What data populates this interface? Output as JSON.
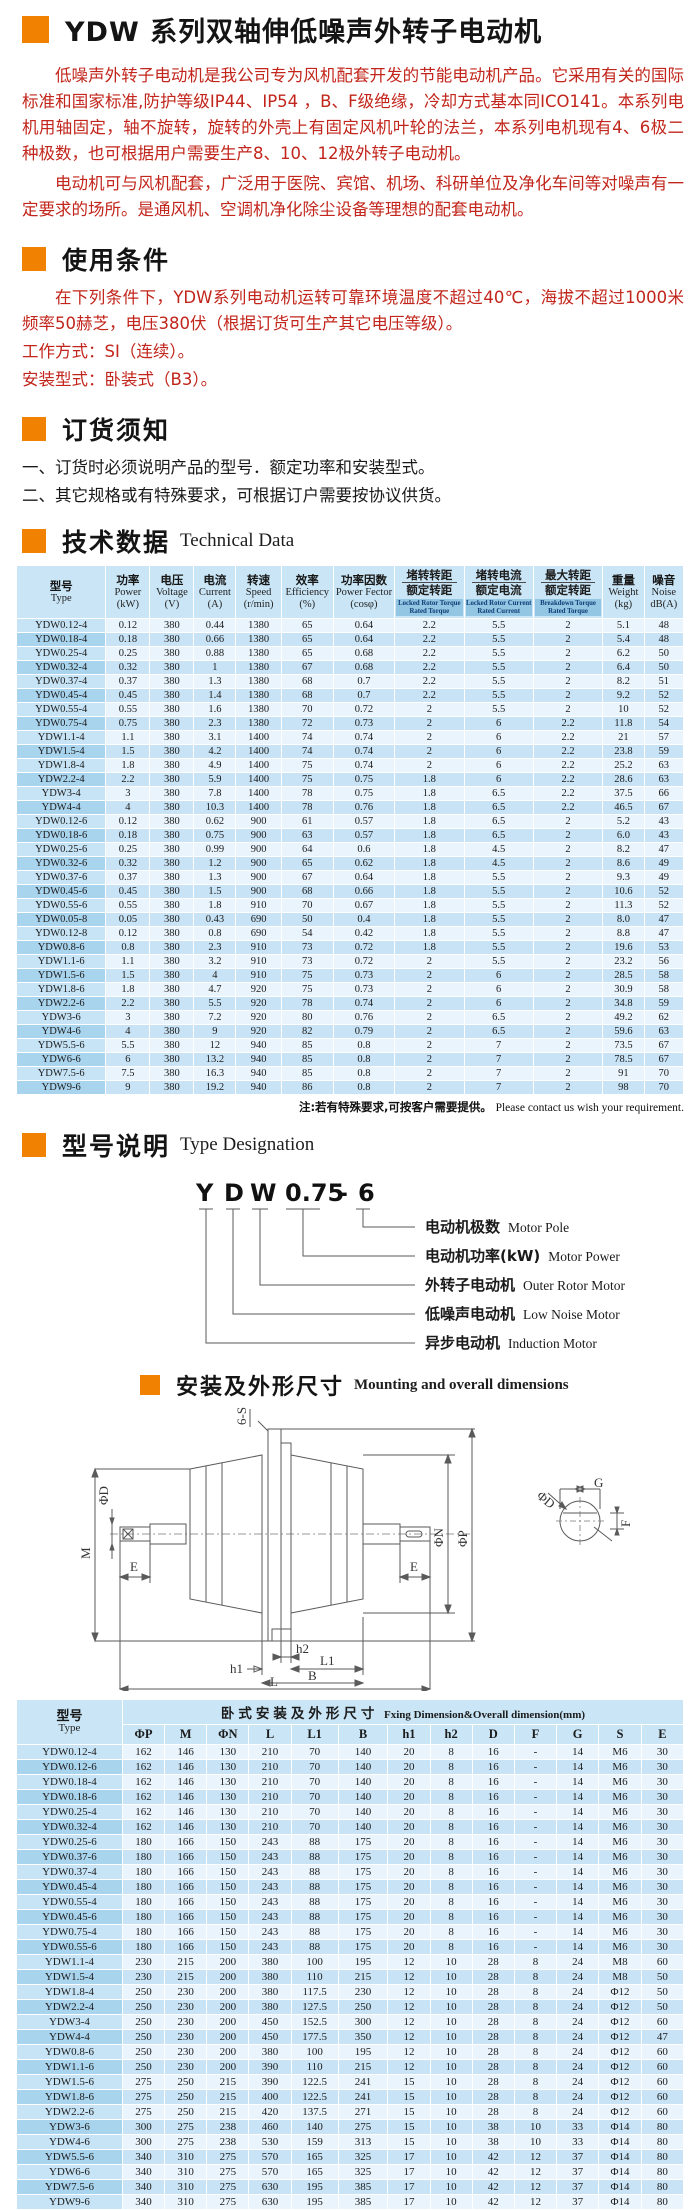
{
  "colors": {
    "accent_orange": "#f18101",
    "body_red": "#c2251b",
    "table_header_blue": "#c9e5f6",
    "row_light": "#e9f4fc",
    "row_dark": "#c7e3f5",
    "torque_label_bg": "#93c6e2",
    "torque_label_text": "#0e3d77"
  },
  "page": {
    "title": "YDW 系列双轴伸低噪声外转子电动机",
    "intro_p1": "低噪声外转子电动机是我公司专为风机配套开发的节能电动机产品。它采用有关的国际标准和国家标准,防护等级IP44、IP54 ，B、F级绝缘，冷却方式基本同ICO141。本系列电机用轴固定，轴不旋转，旋转的外壳上有固定风机叶轮的法兰，本系列电机现有4、6极二种极数，也可根据用户需要生产8、10、12极外转子电动机。",
    "intro_p2": "电动机可与风机配套，广泛用于医院、宾馆、机场、科研单位及净化车间等对噪声有一定要求的场所。是通风机、空调机净化除尘设备等理想的配套电动机。"
  },
  "usage": {
    "heading_cn": "使用条件",
    "p1": "在下列条件下，YDW系列电动机运转可靠环境温度不超过40℃，海拔不超过1000米频率50赫芝，电压380伏（根据订货可生产其它电压等级）。",
    "line1": "工作方式：SI（连续）。",
    "line2": "安装型式：卧装式（B3）。"
  },
  "ordering": {
    "heading_cn": "订货须知",
    "item1": "一、订货时必须说明产品的型号．额定功率和安装型式。",
    "item2": "二、其它规格或有特殊要求，可根据订户需要按协议供货。"
  },
  "tech": {
    "heading_cn": "技术数据",
    "heading_en": "Technical Data",
    "note_cn": "注:若有特殊要求,可按客户需要提供。",
    "note_en": "Please contact us wish your requirement.",
    "headers": [
      {
        "cn": "型号",
        "en": "Type"
      },
      {
        "cn": "功率",
        "en": "Power",
        "unit": "(kW)"
      },
      {
        "cn": "电压",
        "en": "Voltage",
        "unit": "(V)"
      },
      {
        "cn": "电流",
        "en": "Current",
        "unit": "(A)"
      },
      {
        "cn": "转速",
        "en": "Speed",
        "unit": "(r/min)"
      },
      {
        "cn": "效率",
        "en": "Efficiency",
        "unit": "(%)"
      },
      {
        "cn": "功率因数",
        "en": "Power Fector",
        "unit": "(cosφ)"
      },
      {
        "cn_top": "堵转转距",
        "cn_bot": "额定转距",
        "en": "Locked Rotor Torque Rated Torque"
      },
      {
        "cn_top": "堵转电流",
        "cn_bot": "额定电流",
        "en": "Locked Rotor Current Rated Current"
      },
      {
        "cn_top": "最大转距",
        "cn_bot": "额定转距",
        "en": "Breakdown Torque Rated Torque"
      },
      {
        "cn": "重量",
        "en": "Weight",
        "unit": "(kg)"
      },
      {
        "cn": "噪音",
        "en": "Noise",
        "unit": "dB(A)"
      }
    ],
    "rows": [
      [
        "YDW0.12-4",
        "0.12",
        "380",
        "0.44",
        "1380",
        "65",
        "0.64",
        "2.2",
        "5.5",
        "2",
        "5.1",
        "48"
      ],
      [
        "YDW0.18-4",
        "0.18",
        "380",
        "0.66",
        "1380",
        "65",
        "0.64",
        "2.2",
        "5.5",
        "2",
        "5.4",
        "48"
      ],
      [
        "YDW0.25-4",
        "0.25",
        "380",
        "0.88",
        "1380",
        "65",
        "0.68",
        "2.2",
        "5.5",
        "2",
        "6.2",
        "50"
      ],
      [
        "YDW0.32-4",
        "0.32",
        "380",
        "1",
        "1380",
        "67",
        "0.68",
        "2.2",
        "5.5",
        "2",
        "6.4",
        "50"
      ],
      [
        "YDW0.37-4",
        "0.37",
        "380",
        "1.3",
        "1380",
        "68",
        "0.7",
        "2.2",
        "5.5",
        "2",
        "8.2",
        "51"
      ],
      [
        "YDW0.45-4",
        "0.45",
        "380",
        "1.4",
        "1380",
        "68",
        "0.7",
        "2.2",
        "5.5",
        "2",
        "9.2",
        "52"
      ],
      [
        "YDW0.55-4",
        "0.55",
        "380",
        "1.6",
        "1380",
        "70",
        "0.72",
        "2",
        "5.5",
        "2",
        "10",
        "52"
      ],
      [
        "YDW0.75-4",
        "0.75",
        "380",
        "2.3",
        "1380",
        "72",
        "0.73",
        "2",
        "6",
        "2.2",
        "11.8",
        "54"
      ],
      [
        "YDW1.1-4",
        "1.1",
        "380",
        "3.1",
        "1400",
        "74",
        "0.74",
        "2",
        "6",
        "2.2",
        "21",
        "57"
      ],
      [
        "YDW1.5-4",
        "1.5",
        "380",
        "4.2",
        "1400",
        "74",
        "0.74",
        "2",
        "6",
        "2.2",
        "23.8",
        "59"
      ],
      [
        "YDW1.8-4",
        "1.8",
        "380",
        "4.9",
        "1400",
        "75",
        "0.74",
        "2",
        "6",
        "2.2",
        "25.2",
        "63"
      ],
      [
        "YDW2.2-4",
        "2.2",
        "380",
        "5.9",
        "1400",
        "75",
        "0.75",
        "1.8",
        "6",
        "2.2",
        "28.6",
        "63"
      ],
      [
        "YDW3-4",
        "3",
        "380",
        "7.8",
        "1400",
        "78",
        "0.75",
        "1.8",
        "6.5",
        "2.2",
        "37.5",
        "66"
      ],
      [
        "YDW4-4",
        "4",
        "380",
        "10.3",
        "1400",
        "78",
        "0.76",
        "1.8",
        "6.5",
        "2.2",
        "46.5",
        "67"
      ],
      [
        "YDW0.12-6",
        "0.12",
        "380",
        "0.62",
        "900",
        "61",
        "0.57",
        "1.8",
        "6.5",
        "2",
        "5.2",
        "43"
      ],
      [
        "YDW0.18-6",
        "0.18",
        "380",
        "0.75",
        "900",
        "63",
        "0.57",
        "1.8",
        "6.5",
        "2",
        "6.0",
        "43"
      ],
      [
        "YDW0.25-6",
        "0.25",
        "380",
        "0.99",
        "900",
        "64",
        "0.6",
        "1.8",
        "4.5",
        "2",
        "8.2",
        "47"
      ],
      [
        "YDW0.32-6",
        "0.32",
        "380",
        "1.2",
        "900",
        "65",
        "0.62",
        "1.8",
        "4.5",
        "2",
        "8.6",
        "49"
      ],
      [
        "YDW0.37-6",
        "0.37",
        "380",
        "1.3",
        "900",
        "67",
        "0.64",
        "1.8",
        "5.5",
        "2",
        "9.3",
        "49"
      ],
      [
        "YDW0.45-6",
        "0.45",
        "380",
        "1.5",
        "900",
        "68",
        "0.66",
        "1.8",
        "5.5",
        "2",
        "10.6",
        "52"
      ],
      [
        "YDW0.55-6",
        "0.55",
        "380",
        "1.8",
        "910",
        "70",
        "0.67",
        "1.8",
        "5.5",
        "2",
        "11.3",
        "52"
      ],
      [
        "YDW0.05-8",
        "0.05",
        "380",
        "0.43",
        "690",
        "50",
        "0.4",
        "1.8",
        "5.5",
        "2",
        "8.0",
        "47"
      ],
      [
        "YDW0.12-8",
        "0.12",
        "380",
        "0.8",
        "690",
        "54",
        "0.42",
        "1.8",
        "5.5",
        "2",
        "8.8",
        "47"
      ],
      [
        "YDW0.8-6",
        "0.8",
        "380",
        "2.3",
        "910",
        "73",
        "0.72",
        "1.8",
        "5.5",
        "2",
        "19.6",
        "53"
      ],
      [
        "YDW1.1-6",
        "1.1",
        "380",
        "3.2",
        "910",
        "73",
        "0.72",
        "2",
        "5.5",
        "2",
        "23.2",
        "56"
      ],
      [
        "YDW1.5-6",
        "1.5",
        "380",
        "4",
        "910",
        "75",
        "0.73",
        "2",
        "6",
        "2",
        "28.5",
        "58"
      ],
      [
        "YDW1.8-6",
        "1.8",
        "380",
        "4.7",
        "920",
        "75",
        "0.73",
        "2",
        "6",
        "2",
        "30.9",
        "58"
      ],
      [
        "YDW2.2-6",
        "2.2",
        "380",
        "5.5",
        "920",
        "78",
        "0.74",
        "2",
        "6",
        "2",
        "34.8",
        "59"
      ],
      [
        "YDW3-6",
        "3",
        "380",
        "7.2",
        "920",
        "80",
        "0.76",
        "2",
        "6.5",
        "2",
        "49.2",
        "62"
      ],
      [
        "YDW4-6",
        "4",
        "380",
        "9",
        "920",
        "82",
        "0.79",
        "2",
        "6.5",
        "2",
        "59.6",
        "63"
      ],
      [
        "YDW5.5-6",
        "5.5",
        "380",
        "12",
        "940",
        "85",
        "0.8",
        "2",
        "7",
        "2",
        "73.5",
        "67"
      ],
      [
        "YDW6-6",
        "6",
        "380",
        "13.2",
        "940",
        "85",
        "0.8",
        "2",
        "7",
        "2",
        "78.5",
        "67"
      ],
      [
        "YDW7.5-6",
        "7.5",
        "380",
        "16.3",
        "940",
        "85",
        "0.8",
        "2",
        "7",
        "2",
        "91",
        "70"
      ],
      [
        "YDW9-6",
        "9",
        "380",
        "19.2",
        "940",
        "86",
        "0.8",
        "2",
        "7",
        "2",
        "98",
        "70"
      ]
    ]
  },
  "type_designation": {
    "heading_cn": "型号说明",
    "heading_en": "Type Designation",
    "code_parts": [
      "Y",
      "D",
      "W",
      "0.75",
      "-",
      "6"
    ],
    "labels": [
      {
        "cn": "电动机极数",
        "en": "Motor Pole"
      },
      {
        "cn": "电动机功率(kW)",
        "en": "Motor Power"
      },
      {
        "cn": "外转子电动机",
        "en": "Outer Rotor Motor"
      },
      {
        "cn": "低噪声电动机",
        "en": "Low Noise Motor"
      },
      {
        "cn": "异步电动机",
        "en": "Induction Motor"
      }
    ]
  },
  "mounting": {
    "heading_cn": "安装及外形尺寸",
    "heading_en": "Mounting and overall dimensions",
    "labels": {
      "s": "6-S",
      "m": "M",
      "phid": "ΦD",
      "e": "E",
      "phin": "ΦN",
      "phip": "ΦP",
      "h1": "h1",
      "h2": "h2",
      "l1": "L1",
      "b": "B",
      "l": "L",
      "g": "G",
      "f": "F"
    }
  },
  "dim_table": {
    "type_cn": "型号",
    "type_en": "Type",
    "span_cn": "卧式安装及外形尺寸",
    "span_en": "Fxing Dimension&Overall dimension(mm)",
    "columns": [
      "ΦP",
      "M",
      "ΦN",
      "L",
      "L1",
      "B",
      "h1",
      "h2",
      "D",
      "F",
      "G",
      "S",
      "E"
    ],
    "rows": [
      [
        "YDW0.12-4",
        "162",
        "146",
        "130",
        "210",
        "70",
        "140",
        "20",
        "8",
        "16",
        "-",
        "14",
        "M6",
        "30"
      ],
      [
        "YDW0.12-6",
        "162",
        "146",
        "130",
        "210",
        "70",
        "140",
        "20",
        "8",
        "16",
        "-",
        "14",
        "M6",
        "30"
      ],
      [
        "YDW0.18-4",
        "162",
        "146",
        "130",
        "210",
        "70",
        "140",
        "20",
        "8",
        "16",
        "-",
        "14",
        "M6",
        "30"
      ],
      [
        "YDW0.18-6",
        "162",
        "146",
        "130",
        "210",
        "70",
        "140",
        "20",
        "8",
        "16",
        "-",
        "14",
        "M6",
        "30"
      ],
      [
        "YDW0.25-4",
        "162",
        "146",
        "130",
        "210",
        "70",
        "140",
        "20",
        "8",
        "16",
        "-",
        "14",
        "M6",
        "30"
      ],
      [
        "YDW0.32-4",
        "162",
        "146",
        "130",
        "210",
        "70",
        "140",
        "20",
        "8",
        "16",
        "-",
        "14",
        "M6",
        "30"
      ],
      [
        "YDW0.25-6",
        "180",
        "166",
        "150",
        "243",
        "88",
        "175",
        "20",
        "8",
        "16",
        "-",
        "14",
        "M6",
        "30"
      ],
      [
        "YDW0.37-6",
        "180",
        "166",
        "150",
        "243",
        "88",
        "175",
        "20",
        "8",
        "16",
        "-",
        "14",
        "M6",
        "30"
      ],
      [
        "YDW0.37-4",
        "180",
        "166",
        "150",
        "243",
        "88",
        "175",
        "20",
        "8",
        "16",
        "-",
        "14",
        "M6",
        "30"
      ],
      [
        "YDW0.45-4",
        "180",
        "166",
        "150",
        "243",
        "88",
        "175",
        "20",
        "8",
        "16",
        "-",
        "14",
        "M6",
        "30"
      ],
      [
        "YDW0.55-4",
        "180",
        "166",
        "150",
        "243",
        "88",
        "175",
        "20",
        "8",
        "16",
        "-",
        "14",
        "M6",
        "30"
      ],
      [
        "YDW0.45-6",
        "180",
        "166",
        "150",
        "243",
        "88",
        "175",
        "20",
        "8",
        "16",
        "-",
        "14",
        "M6",
        "30"
      ],
      [
        "YDW0.75-4",
        "180",
        "166",
        "150",
        "243",
        "88",
        "175",
        "20",
        "8",
        "16",
        "-",
        "14",
        "M6",
        "30"
      ],
      [
        "YDW0.55-6",
        "180",
        "166",
        "150",
        "243",
        "88",
        "175",
        "20",
        "8",
        "16",
        "-",
        "14",
        "M6",
        "30"
      ],
      [
        "YDW1.1-4",
        "230",
        "215",
        "200",
        "380",
        "100",
        "195",
        "12",
        "10",
        "28",
        "8",
        "24",
        "M8",
        "60"
      ],
      [
        "YDW1.5-4",
        "230",
        "215",
        "200",
        "380",
        "110",
        "215",
        "12",
        "10",
        "28",
        "8",
        "24",
        "M8",
        "50"
      ],
      [
        "YDW1.8-4",
        "250",
        "230",
        "200",
        "380",
        "117.5",
        "230",
        "12",
        "10",
        "28",
        "8",
        "24",
        "Φ12",
        "50"
      ],
      [
        "YDW2.2-4",
        "250",
        "230",
        "200",
        "380",
        "127.5",
        "250",
        "12",
        "10",
        "28",
        "8",
        "24",
        "Φ12",
        "50"
      ],
      [
        "YDW3-4",
        "250",
        "230",
        "200",
        "450",
        "152.5",
        "300",
        "12",
        "10",
        "28",
        "8",
        "24",
        "Φ12",
        "60"
      ],
      [
        "YDW4-4",
        "250",
        "230",
        "200",
        "450",
        "177.5",
        "350",
        "12",
        "10",
        "28",
        "8",
        "24",
        "Φ12",
        "47"
      ],
      [
        "YDW0.8-6",
        "250",
        "230",
        "200",
        "380",
        "100",
        "195",
        "12",
        "10",
        "28",
        "8",
        "24",
        "Φ12",
        "60"
      ],
      [
        "YDW1.1-6",
        "250",
        "230",
        "200",
        "390",
        "110",
        "215",
        "12",
        "10",
        "28",
        "8",
        "24",
        "Φ12",
        "60"
      ],
      [
        "YDW1.5-6",
        "275",
        "250",
        "215",
        "390",
        "122.5",
        "241",
        "15",
        "10",
        "28",
        "8",
        "24",
        "Φ12",
        "60"
      ],
      [
        "YDW1.8-6",
        "275",
        "250",
        "215",
        "400",
        "122.5",
        "241",
        "15",
        "10",
        "28",
        "8",
        "24",
        "Φ12",
        "60"
      ],
      [
        "YDW2.2-6",
        "275",
        "250",
        "215",
        "420",
        "137.5",
        "271",
        "15",
        "10",
        "28",
        "8",
        "24",
        "Φ12",
        "60"
      ],
      [
        "YDW3-6",
        "300",
        "275",
        "238",
        "460",
        "140",
        "275",
        "15",
        "10",
        "38",
        "10",
        "33",
        "Φ14",
        "80"
      ],
      [
        "YDW4-6",
        "300",
        "275",
        "238",
        "530",
        "159",
        "313",
        "15",
        "10",
        "38",
        "10",
        "33",
        "Φ14",
        "80"
      ],
      [
        "YDW5.5-6",
        "340",
        "310",
        "275",
        "570",
        "165",
        "325",
        "17",
        "10",
        "42",
        "12",
        "37",
        "Φ14",
        "80"
      ],
      [
        "YDW6-6",
        "340",
        "310",
        "275",
        "570",
        "165",
        "325",
        "17",
        "10",
        "42",
        "12",
        "37",
        "Φ14",
        "80"
      ],
      [
        "YDW7.5-6",
        "340",
        "310",
        "275",
        "630",
        "195",
        "385",
        "17",
        "10",
        "42",
        "12",
        "37",
        "Φ14",
        "80"
      ],
      [
        "YDW9-6",
        "340",
        "310",
        "275",
        "630",
        "195",
        "385",
        "17",
        "10",
        "42",
        "12",
        "37",
        "Φ14",
        "80"
      ]
    ]
  }
}
